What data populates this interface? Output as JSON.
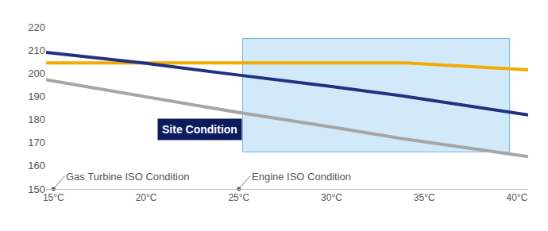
{
  "chart_data": {
    "type": "line",
    "x": [
      14.6,
      20,
      25,
      30,
      34,
      40.6
    ],
    "series": [
      {
        "color": "#f5aa00",
        "values": [
          204.5,
          204.5,
          204.5,
          204.5,
          204.5,
          201.5
        ]
      },
      {
        "color": "#1f3282",
        "values": [
          209,
          204.3,
          199.2,
          194.3,
          190,
          182
        ]
      },
      {
        "color": "#a6a6a6",
        "values": [
          197.2,
          190,
          183,
          176.8,
          171.5,
          164
        ]
      }
    ],
    "xlim": [
      14.6,
      40.6
    ],
    "xticks": [
      {
        "value": 15,
        "label": "15°C"
      },
      {
        "value": 20,
        "label": "20°C"
      },
      {
        "value": 25,
        "label": "25°C"
      },
      {
        "value": 30,
        "label": "30°C"
      },
      {
        "value": 35,
        "label": "35°C"
      },
      {
        "value": 40,
        "label": "40°C"
      }
    ],
    "ylim": [
      150,
      220
    ],
    "yticks": [
      150,
      160,
      170,
      180,
      190,
      200,
      210,
      220
    ],
    "grid": false,
    "regions": [
      {
        "label": "Site Condition",
        "x0": 25.2,
        "x1": 39.6,
        "y0": 166,
        "y1": 215,
        "color": "#cde7f9"
      }
    ],
    "annotations": [
      {
        "text": "Gas Turbine ISO Condition",
        "x": 15
      },
      {
        "text": "Engine ISO Condition",
        "x": 25
      }
    ]
  }
}
